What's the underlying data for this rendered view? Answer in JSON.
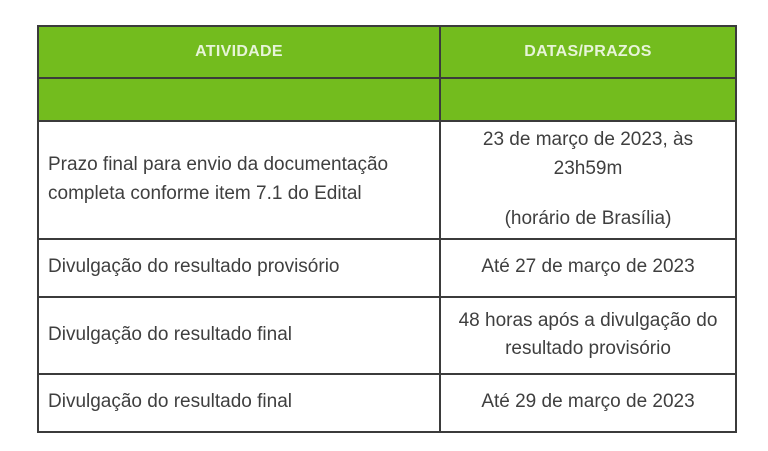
{
  "colors": {
    "accent_green": "#73bc1e",
    "header_text": "#e7f4d8",
    "border": "#3b3b3b",
    "body_text": "#3f3f3f",
    "page_background": "#ffffff"
  },
  "table": {
    "headers": [
      "ATIVIDADE",
      "DATAS/PRAZOS"
    ],
    "rows": [
      {
        "atividade": "Prazo final para envio da documentação completa conforme item 7.1 do Edital",
        "prazo_line1": "23 de março de 2023, às 23h59m",
        "prazo_line2": "(horário de Brasília)"
      },
      {
        "atividade": "Divulgação do resultado provisório",
        "prazo_line1": "Até 27 de março de 2023"
      },
      {
        "atividade": "Divulgação do resultado final",
        "prazo_line1": "48 horas após a divulgação do resultado provisório"
      },
      {
        "atividade": "Divulgação do resultado final",
        "prazo_line1": "Até 29 de março de 2023"
      }
    ]
  }
}
